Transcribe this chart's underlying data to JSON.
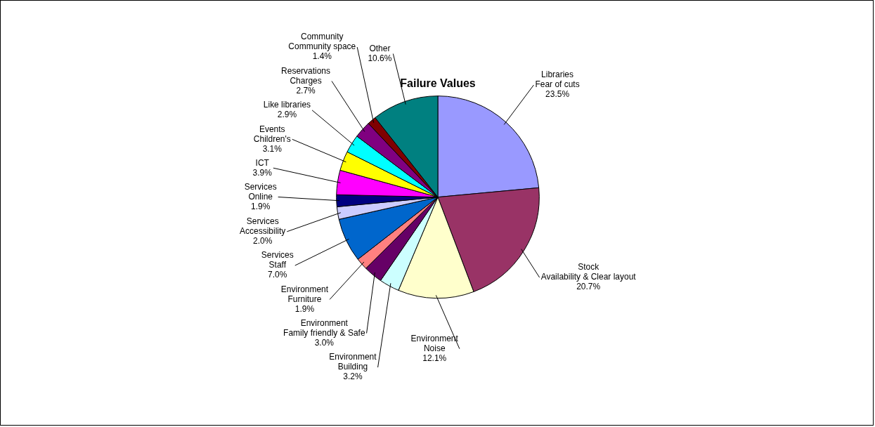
{
  "chart_data": {
    "type": "pie",
    "title": "Failure Values",
    "categories": [
      "Libraries\nFear of cuts",
      "Stock\nAvailability & Clear layout",
      "Environment\nNoise",
      "Environment\nBuilding",
      "Environment\nFamily friendly & Safe",
      "Environment\nFurniture",
      "Services\nStaff",
      "Services\nAccessibility",
      "Services\nOnline",
      "ICT",
      "Events\nChildren's",
      "Like libraries",
      "Reservations\nCharges",
      "Community\nCommunity space",
      "Other"
    ],
    "values": [
      23.5,
      20.7,
      12.1,
      3.2,
      3.0,
      1.9,
      7.0,
      2.0,
      1.9,
      3.9,
      3.1,
      2.9,
      2.7,
      1.4,
      10.6
    ],
    "value_labels": [
      "23.5%",
      "20.7%",
      "12.1%",
      "3.2%",
      "3.0%",
      "1.9%",
      "7.0%",
      "2.0%",
      "1.9%",
      "3.9%",
      "3.1%",
      "2.9%",
      "2.7%",
      "1.4%",
      "10.6%"
    ],
    "colors": [
      "#9999ff",
      "#993366",
      "#ffffcc",
      "#ccffff",
      "#660066",
      "#ff8080",
      "#0066cc",
      "#ccccff",
      "#000080",
      "#ff00ff",
      "#ffff00",
      "#00ffff",
      "#800080",
      "#800000",
      "#008080"
    ],
    "legend": false
  }
}
